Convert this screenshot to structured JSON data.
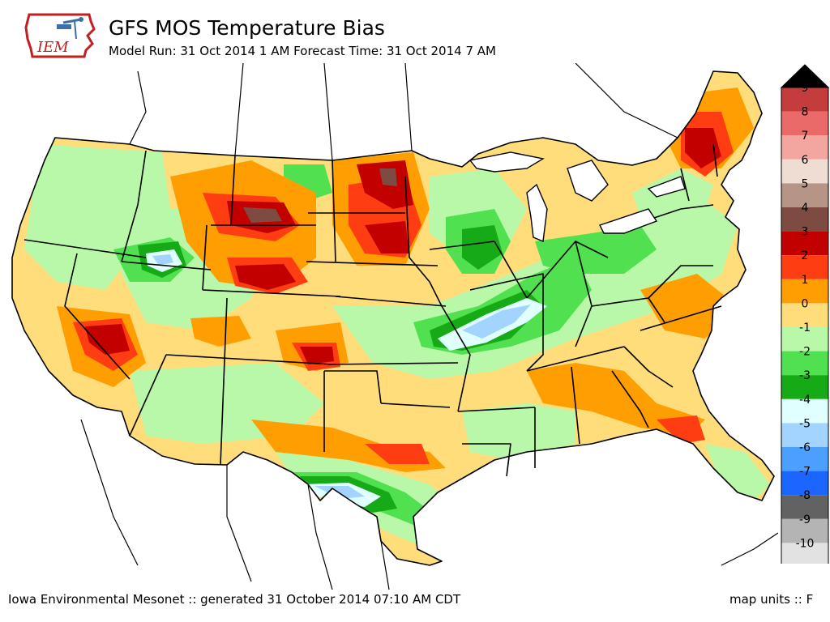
{
  "header": {
    "logo_text": "IEM",
    "title": "GFS MOS Temperature Bias",
    "subtitle": "Model Run: 31 Oct 2014 1 AM Forecast Time: 31 Oct 2014 7 AM"
  },
  "footer": {
    "credit": "Iowa Environmental Mesonet :: generated 31 October 2014 07:10 AM CDT",
    "units": "map units :: F"
  },
  "legend": {
    "levels": [
      {
        "label": "9",
        "color": "#c43c3c"
      },
      {
        "label": "8",
        "color": "#ea6a6a"
      },
      {
        "label": "7",
        "color": "#f3a6a0"
      },
      {
        "label": "6",
        "color": "#efdcd2"
      },
      {
        "label": "5",
        "color": "#b69486"
      },
      {
        "label": "4",
        "color": "#7d4b42"
      },
      {
        "label": "3",
        "color": "#c30000"
      },
      {
        "label": "2",
        "color": "#ff3d12"
      },
      {
        "label": "1",
        "color": "#ff9e00"
      },
      {
        "label": "0",
        "color": "#ffdd7a"
      },
      {
        "label": "-1",
        "color": "#b9f8a8"
      },
      {
        "label": "-2",
        "color": "#50e050"
      },
      {
        "label": "-3",
        "color": "#16aa16"
      },
      {
        "label": "-4",
        "color": "#e0ffff"
      },
      {
        "label": "-5",
        "color": "#a2d4ff"
      },
      {
        "label": "-6",
        "color": "#4a9fff"
      },
      {
        "label": "-7",
        "color": "#1a66ff"
      },
      {
        "label": "-8",
        "color": "#626262"
      },
      {
        "label": "-9",
        "color": "#b4b4b4"
      },
      {
        "label": "-10",
        "color": "#e2e2e2"
      }
    ],
    "top_arrow_color": "#000000",
    "bottom_arrow_color": "#ffffff"
  }
}
